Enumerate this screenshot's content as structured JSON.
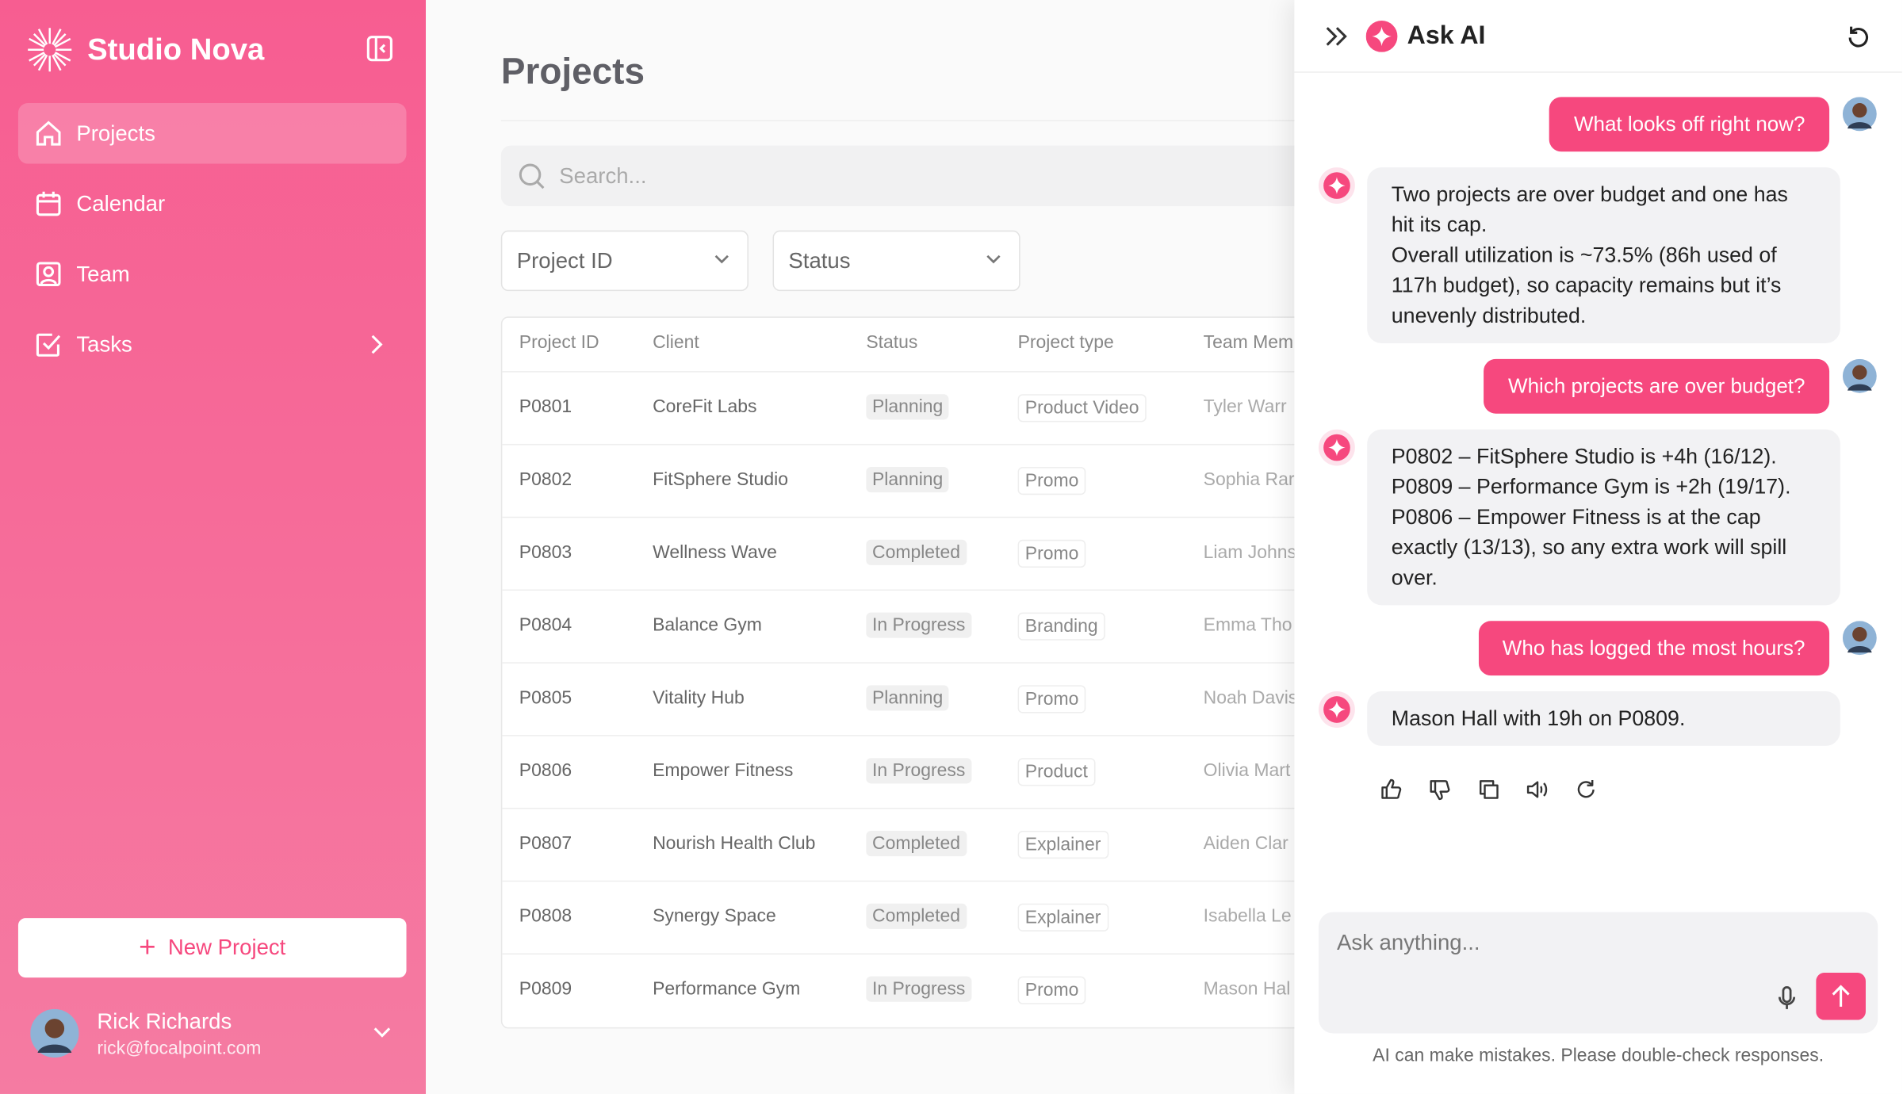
{
  "sidebar": {
    "brand": "Studio Nova",
    "nav": [
      "Projects",
      "Calendar",
      "Team",
      "Tasks"
    ],
    "new_project": "New Project",
    "user": {
      "name": "Rick Richards",
      "email": "rick@focalpoint.com"
    }
  },
  "page": {
    "title": "Projects",
    "search_placeholder": "Search...",
    "filters": [
      "Project ID",
      "Status"
    ]
  },
  "table": {
    "columns": [
      "Project ID",
      "Client",
      "Status",
      "Project type",
      "Team Mem"
    ],
    "rows": [
      [
        "P0801",
        "CoreFit Labs",
        "Planning",
        "Product Video",
        "Tyler Warr"
      ],
      [
        "P0802",
        "FitSphere Studio",
        "Planning",
        "Promo",
        "Sophia Rar"
      ],
      [
        "P0803",
        "Wellness Wave",
        "Completed",
        "Promo",
        "Liam Johns"
      ],
      [
        "P0804",
        "Balance Gym",
        "In Progress",
        "Branding",
        "Emma Tho"
      ],
      [
        "P0805",
        "Vitality Hub",
        "Planning",
        "Promo",
        "Noah Davis"
      ],
      [
        "P0806",
        "Empower Fitness",
        "In Progress",
        "Product",
        "Olivia Mart"
      ],
      [
        "P0807",
        "Nourish Health Club",
        "Completed",
        "Explainer",
        "Aiden Clar"
      ],
      [
        "P0808",
        "Synergy Space",
        "Completed",
        "Explainer",
        "Isabella Le"
      ],
      [
        "P0809",
        "Performance Gym",
        "In Progress",
        "Promo",
        "Mason Hal"
      ]
    ]
  },
  "chat": {
    "title": "Ask AI",
    "messages": [
      {
        "role": "user",
        "text": "What looks off right now?"
      },
      {
        "role": "ai",
        "text": "Two projects are over budget and one has hit its cap.\nOverall utilization is ~73.5% (86h used of 117h budget), so capacity remains but it’s unevenly distributed."
      },
      {
        "role": "user",
        "text": "Which projects are over budget?"
      },
      {
        "role": "ai",
        "text": "P0802 – FitSphere Studio is +4h (16/12).\nP0809 – Performance Gym is +2h (19/17).\nP0806 – Empower Fitness is at the cap exactly (13/13), so any extra work will spill over."
      },
      {
        "role": "user",
        "text": "Who has logged the most hours?"
      },
      {
        "role": "ai",
        "text": "Mason Hall with 19h on P0809."
      }
    ],
    "input_placeholder": "Ask anything...",
    "disclaimer": "AI can make mistakes. Please double-check responses."
  }
}
